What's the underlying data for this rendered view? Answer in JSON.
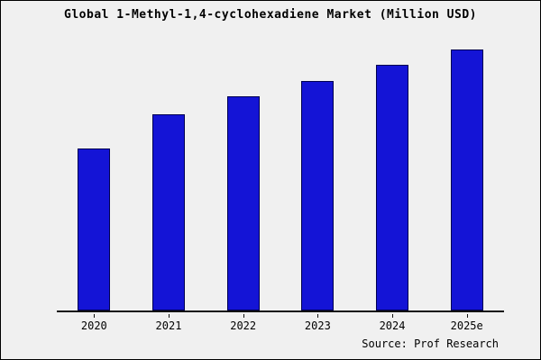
{
  "title": "Global 1-Methyl-1,4-cyclohexadiene Market (Million USD)",
  "source": "Source: Prof Research",
  "colors": {
    "background": "#f0f0f0",
    "bar_fill": "#1414d6",
    "bar_border": "#000050",
    "axis": "#111111",
    "text": "#000000"
  },
  "chart_data": {
    "type": "bar",
    "title": "Global 1-Methyl-1,4-cyclohexadiene Market (Million USD)",
    "categories": [
      "2020",
      "2021",
      "2022",
      "2023",
      "2024",
      "2025e"
    ],
    "values": [
      62,
      75,
      82,
      88,
      94,
      100
    ],
    "xlabel": "",
    "ylabel": "",
    "ylim": [
      0,
      103
    ],
    "grid": false,
    "legend": false,
    "y_axis_labels_visible": false,
    "source_annotation": "Source: Prof Research"
  }
}
